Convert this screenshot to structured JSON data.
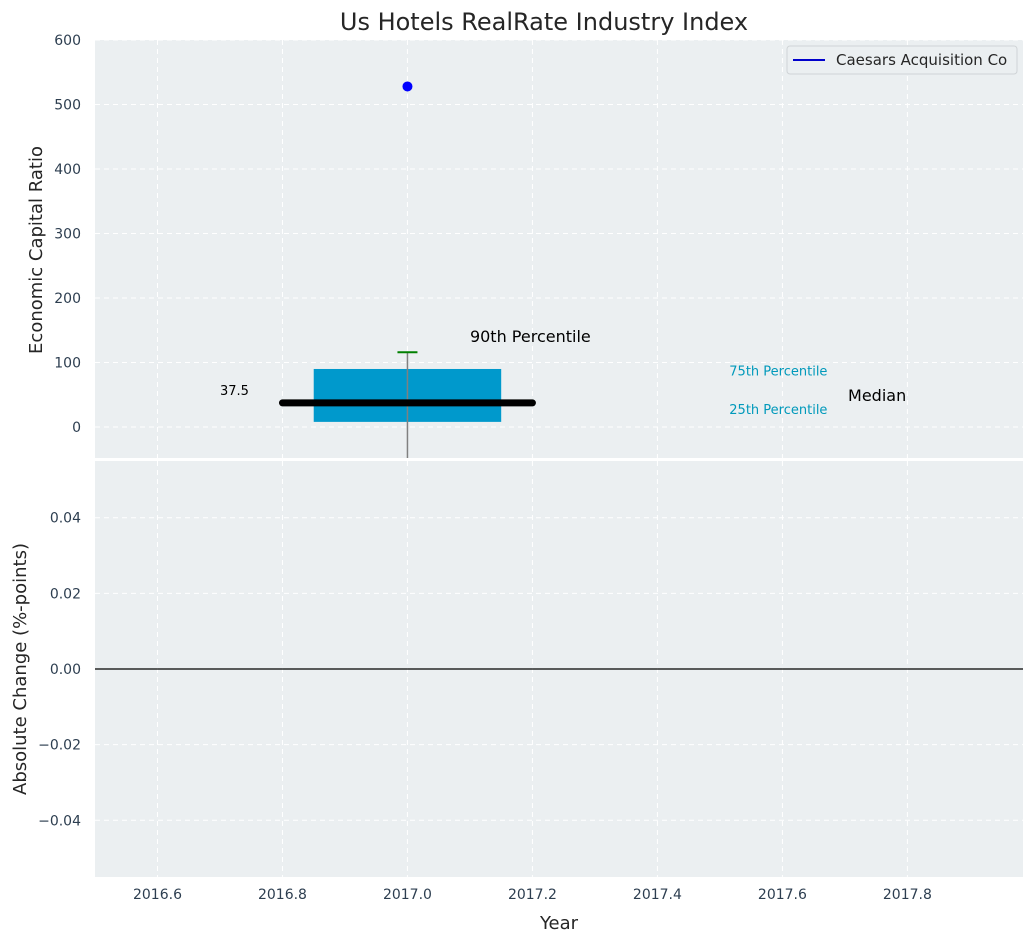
{
  "chart_data": {
    "type": "box",
    "title": "Us Hotels RealRate Industry Index",
    "colors": {
      "panel_bg": "#ebeff1",
      "box": "#0099cc",
      "median": "#000000",
      "whisker": "#808080",
      "cap": "#008000",
      "point": "#0000ff",
      "legend_line": "#0000cc",
      "percentile_label": "#0099bb"
    },
    "top_panel": {
      "ylabel": "Economic Capital Ratio",
      "ylim": [
        -48,
        600
      ],
      "yticks": [
        "0",
        "100",
        "200",
        "300",
        "400",
        "500",
        "600"
      ],
      "ytick_values": [
        0,
        100,
        200,
        300,
        400,
        500,
        600
      ],
      "box": {
        "x": 2017.0,
        "x_from": 2016.85,
        "x_to": 2017.15,
        "q1": 8,
        "q3": 90,
        "median": 37.5,
        "median_from": 2016.8,
        "median_to": 2017.2,
        "whisker_low": -48,
        "whisker_high": 116
      },
      "company_point": {
        "x": 2017.0,
        "y": 528
      },
      "annotations": {
        "median_value": {
          "text": "37.5",
          "x": 2016.7,
          "y": 50
        },
        "p90": {
          "text": "90th Percentile",
          "x": 2017.1,
          "y": 132
        },
        "p75": {
          "text": "75th Percentile",
          "x": 2017.515,
          "y": 80
        },
        "p25": {
          "text": "25th Percentile",
          "x": 2017.515,
          "y": 20
        },
        "median": {
          "text": "Median",
          "x": 2017.705,
          "y": 40
        }
      },
      "legend": {
        "position": "top-right",
        "entries": [
          "Caesars Acquisition Co"
        ]
      }
    },
    "bottom_panel": {
      "ylabel": "Absolute Change (%-points)",
      "xlabel": "Year",
      "ylim": [
        -0.055,
        0.055
      ],
      "yticks": [
        "0.04",
        "0.02",
        "0.00",
        "−0.02",
        "−0.04"
      ],
      "ytick_values": [
        0.04,
        0.02,
        0.0,
        -0.02,
        -0.04
      ],
      "zero_line": 0.0
    },
    "x_axis": {
      "xlim": [
        2016.5,
        2017.985
      ],
      "ticks": [
        "2016.6",
        "2016.8",
        "2017.0",
        "2017.2",
        "2017.4",
        "2017.6",
        "2017.8"
      ],
      "tick_values": [
        2016.6,
        2016.8,
        2017.0,
        2017.2,
        2017.4,
        2017.6,
        2017.8
      ]
    }
  }
}
